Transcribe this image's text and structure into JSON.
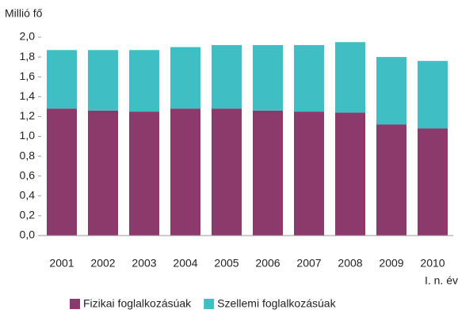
{
  "chart_data": {
    "type": "stacked_bar",
    "y_axis_label": "Millió fő",
    "annotation": "I. n. év",
    "categories": [
      "2001",
      "2002",
      "2003",
      "2004",
      "2005",
      "2006",
      "2007",
      "2008",
      "2009",
      "2010"
    ],
    "series": [
      {
        "name": "Fizikai foglalkozásúak",
        "color": "#8b3a6b",
        "values": [
          1.28,
          1.26,
          1.25,
          1.28,
          1.28,
          1.26,
          1.25,
          1.24,
          1.12,
          1.08
        ]
      },
      {
        "name": "Szellemi foglalkozásúak",
        "color": "#3fbfc4",
        "values": [
          0.59,
          0.61,
          0.62,
          0.62,
          0.64,
          0.66,
          0.67,
          0.71,
          0.68,
          0.68
        ]
      }
    ],
    "ylim": [
      0,
      2
    ],
    "yticks": [
      {
        "value": 0,
        "label": "0,0"
      },
      {
        "value": 0.2,
        "label": "0,2"
      },
      {
        "value": 0.4,
        "label": "0,4"
      },
      {
        "value": 0.6,
        "label": "0,6"
      },
      {
        "value": 0.8,
        "label": "0,8"
      },
      {
        "value": 1,
        "label": "1,0"
      },
      {
        "value": 1.2,
        "label": "1,2"
      },
      {
        "value": 1.4,
        "label": "1,4"
      },
      {
        "value": 1.6,
        "label": "1,6"
      },
      {
        "value": 1.8,
        "label": "1,8"
      },
      {
        "value": 2,
        "label": "2,0"
      }
    ],
    "legend": "bottom"
  }
}
